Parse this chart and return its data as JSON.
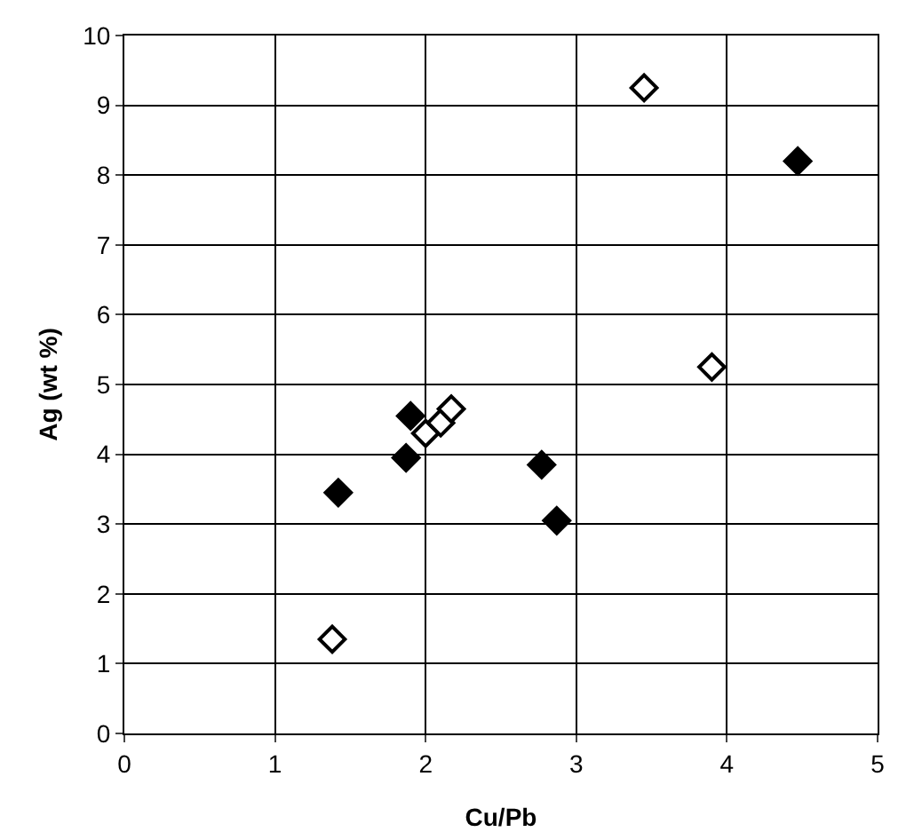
{
  "chart_data": {
    "type": "scatter",
    "xlabel": "Cu/Pb",
    "ylabel": "Ag (wt %)",
    "series": [
      {
        "color": "#000000",
        "x": [
          1.42,
          1.87,
          1.9,
          2.77,
          2.87,
          4.47
        ],
        "values": [
          3.45,
          3.95,
          4.55,
          3.85,
          3.05,
          8.2
        ]
      },
      {
        "color": "#ffffff",
        "x": [
          1.38,
          2.0,
          2.1,
          2.17,
          3.45,
          3.9
        ],
        "values": [
          1.35,
          4.3,
          4.45,
          4.65,
          9.25,
          5.25
        ]
      }
    ],
    "xlim": [
      0,
      5
    ],
    "xticks": [
      0,
      1,
      2,
      3,
      4,
      5
    ],
    "ylim": [
      0,
      10
    ],
    "yticks": [
      0,
      1,
      2,
      3,
      4,
      5,
      6,
      7,
      8,
      9,
      10
    ],
    "grid": true,
    "marker": "diamond"
  }
}
